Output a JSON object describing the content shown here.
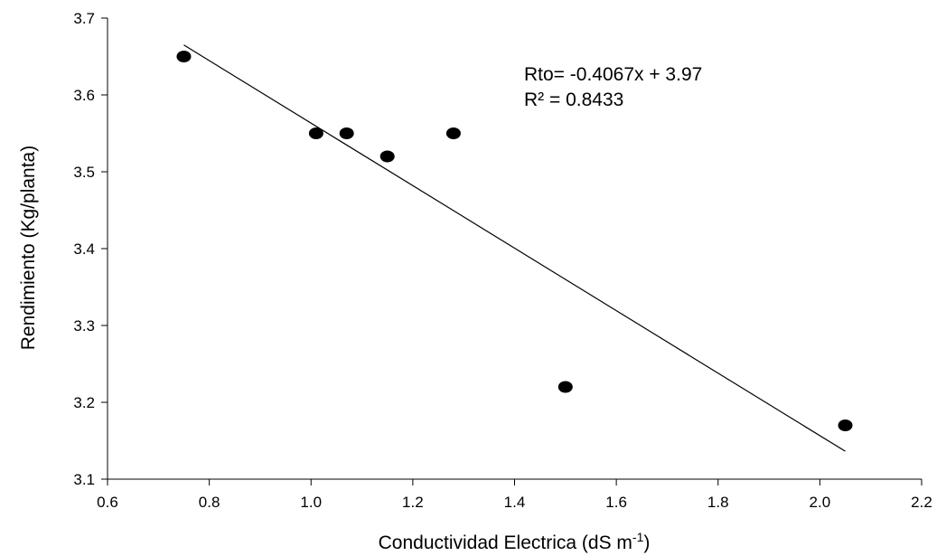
{
  "chart_data": {
    "type": "scatter",
    "title": "",
    "xlabel": "Conductividad Electrica (dS m",
    "xlabel_superscript": "-1",
    "xlabel_suffix": ")",
    "ylabel": "Rendimiento (Kg/planta)",
    "xlim": [
      0.6,
      2.2
    ],
    "ylim": [
      3.1,
      3.7
    ],
    "xticks": [
      0.6,
      0.8,
      1.0,
      1.2,
      1.4,
      1.6,
      1.8,
      2.0,
      2.2
    ],
    "xtick_labels": [
      "0.6",
      "0.8",
      "1.0",
      "1.2",
      "1.4",
      "1.6",
      "1.8",
      "2.0",
      "2.2"
    ],
    "yticks": [
      3.1,
      3.2,
      3.3,
      3.4,
      3.5,
      3.6,
      3.7
    ],
    "ytick_labels": [
      "3.1",
      "3.2",
      "3.3",
      "3.4",
      "3.5",
      "3.6",
      "3.7"
    ],
    "grid": false,
    "legend": "none",
    "marker_color": "#000000",
    "points": [
      {
        "x": 0.75,
        "y": 3.65
      },
      {
        "x": 1.01,
        "y": 3.55
      },
      {
        "x": 1.07,
        "y": 3.55
      },
      {
        "x": 1.15,
        "y": 3.52
      },
      {
        "x": 1.28,
        "y": 3.55
      },
      {
        "x": 1.5,
        "y": 3.22
      },
      {
        "x": 2.05,
        "y": 3.17
      }
    ],
    "trendline": {
      "slope": -0.4067,
      "intercept": 3.97,
      "x_start": 0.75,
      "x_end": 2.05
    },
    "annotations": {
      "equation": "Rto= -0.4067x + 3.97",
      "r_squared": "R² = 0.8433"
    }
  }
}
